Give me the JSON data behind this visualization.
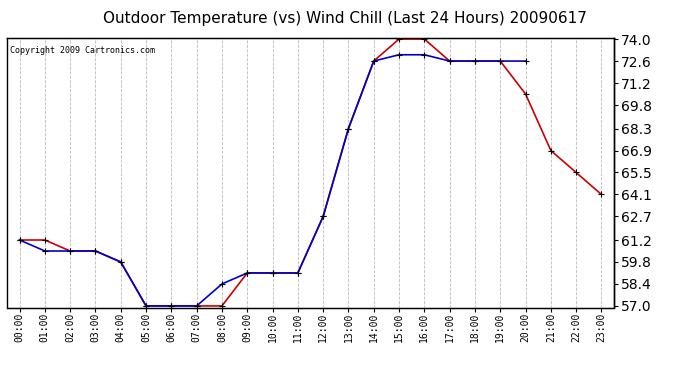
{
  "title": "Outdoor Temperature (vs) Wind Chill (Last 24 Hours) 20090617",
  "copyright_text": "Copyright 2009 Cartronics.com",
  "x_labels": [
    "00:00",
    "01:00",
    "02:00",
    "03:00",
    "04:00",
    "05:00",
    "06:00",
    "07:00",
    "08:00",
    "09:00",
    "10:00",
    "11:00",
    "12:00",
    "13:00",
    "14:00",
    "15:00",
    "16:00",
    "17:00",
    "18:00",
    "19:00",
    "20:00",
    "21:00",
    "22:00",
    "23:00"
  ],
  "temp_red": [
    61.2,
    61.2,
    60.5,
    60.5,
    59.8,
    57.0,
    57.0,
    57.0,
    57.0,
    59.1,
    59.1,
    59.1,
    62.7,
    68.3,
    72.6,
    74.0,
    74.0,
    72.6,
    72.6,
    72.6,
    70.5,
    66.9,
    65.5,
    64.1
  ],
  "wind_chill_blue": [
    61.2,
    60.5,
    60.5,
    60.5,
    59.8,
    57.0,
    57.0,
    57.0,
    58.4,
    59.1,
    59.1,
    59.1,
    62.7,
    68.3,
    72.6,
    73.0,
    73.0,
    72.6,
    72.6,
    72.6,
    72.6,
    null,
    null,
    null
  ],
  "ylim_min": 57.0,
  "ylim_max": 74.0,
  "yticks": [
    57.0,
    58.4,
    59.8,
    61.2,
    62.7,
    64.1,
    65.5,
    66.9,
    68.3,
    69.8,
    71.2,
    72.6,
    74.0
  ],
  "yticklabels": [
    "57.0",
    "58.4",
    "59.8",
    "61.2",
    "62.7",
    "64.1",
    "65.5",
    "66.9",
    "68.3",
    "69.8",
    "71.2",
    "72.6",
    "74.0"
  ],
  "temp_color": "#cc0000",
  "wind_chill_color": "#0000cc",
  "bg_color": "#ffffff",
  "grid_color": "#bbbbbb",
  "title_fontsize": 11,
  "copyright_fontsize": 6,
  "tick_fontsize": 7,
  "marker_size": 5,
  "linewidth": 1.2
}
